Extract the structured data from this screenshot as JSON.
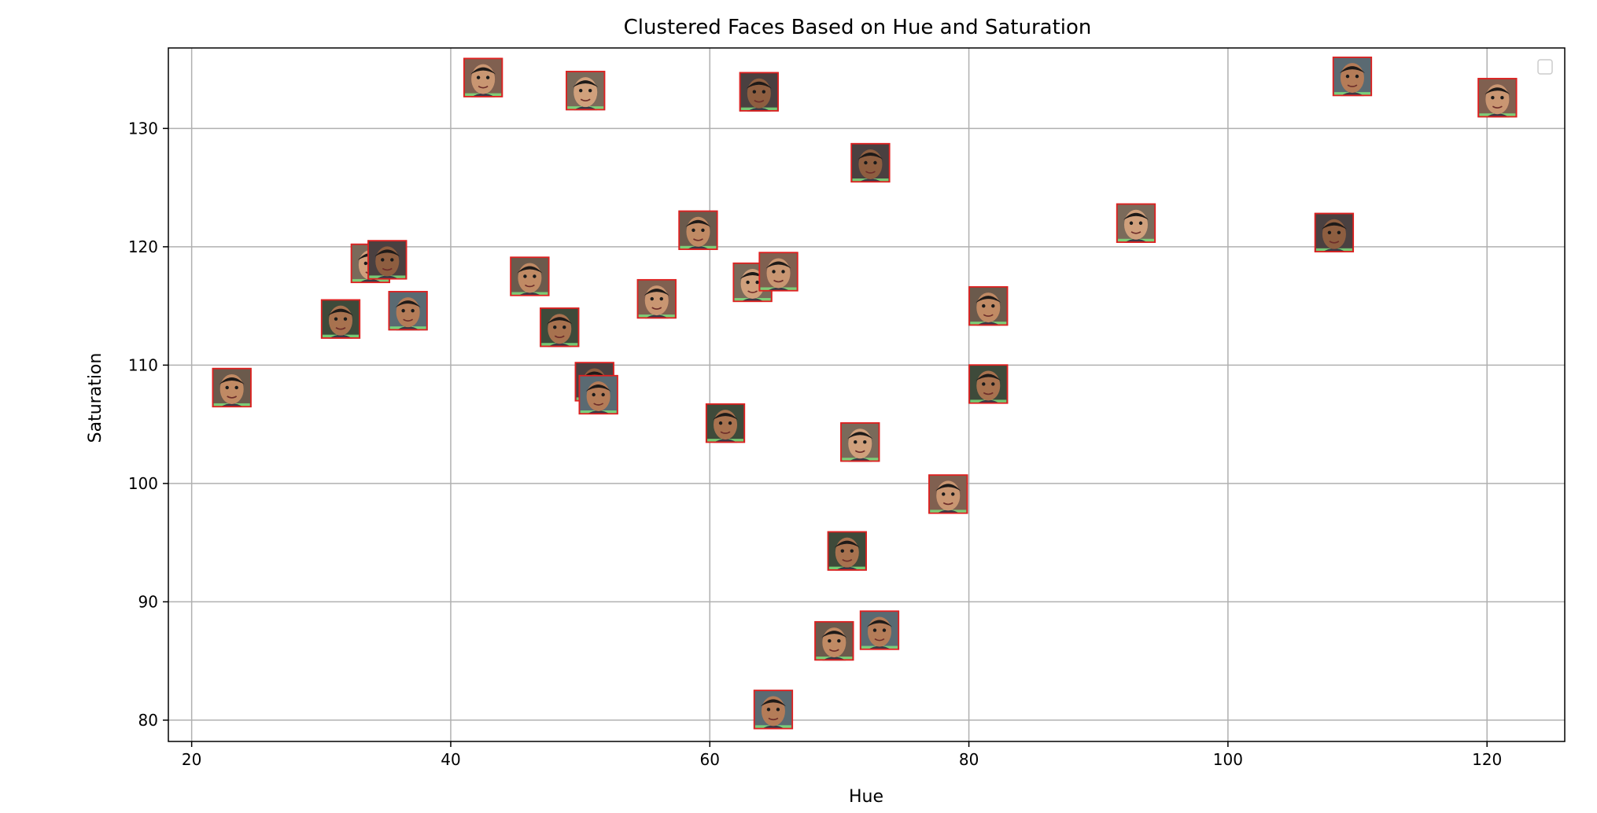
{
  "chart_data": {
    "type": "scatter",
    "title": "Clustered Faces Based on Hue and Saturation",
    "xlabel": "Hue",
    "ylabel": "Saturation",
    "xlim": [
      18.2,
      126
    ],
    "ylim": [
      78.2,
      136.8
    ],
    "xticks": [
      20,
      40,
      60,
      80,
      100,
      120
    ],
    "yticks": [
      80,
      90,
      100,
      110,
      120,
      130
    ],
    "grid": true,
    "legend": "top-right",
    "marker": "face-thumbnail",
    "colors": {
      "marker_border": "#e02020",
      "marker_accent": "#7ee07e",
      "grid": "#b0b0b0",
      "axes": "#000000"
    },
    "points": [
      {
        "x": 23.1,
        "y": 108.1
      },
      {
        "x": 31.5,
        "y": 113.9
      },
      {
        "x": 33.8,
        "y": 118.6
      },
      {
        "x": 35.1,
        "y": 118.9
      },
      {
        "x": 36.7,
        "y": 114.6
      },
      {
        "x": 42.5,
        "y": 134.3
      },
      {
        "x": 46.1,
        "y": 117.5
      },
      {
        "x": 48.4,
        "y": 113.2
      },
      {
        "x": 50.4,
        "y": 133.2
      },
      {
        "x": 51.1,
        "y": 108.6
      },
      {
        "x": 51.4,
        "y": 107.5
      },
      {
        "x": 55.9,
        "y": 115.6
      },
      {
        "x": 59.1,
        "y": 121.4
      },
      {
        "x": 61.2,
        "y": 105.1
      },
      {
        "x": 63.3,
        "y": 117.0
      },
      {
        "x": 63.8,
        "y": 133.1
      },
      {
        "x": 64.9,
        "y": 80.9
      },
      {
        "x": 65.3,
        "y": 117.9
      },
      {
        "x": 69.6,
        "y": 86.7
      },
      {
        "x": 70.6,
        "y": 94.3
      },
      {
        "x": 71.6,
        "y": 103.5
      },
      {
        "x": 72.4,
        "y": 127.1
      },
      {
        "x": 73.1,
        "y": 87.6
      },
      {
        "x": 78.4,
        "y": 99.1
      },
      {
        "x": 81.5,
        "y": 115.0
      },
      {
        "x": 81.5,
        "y": 108.4
      },
      {
        "x": 92.9,
        "y": 122.0
      },
      {
        "x": 108.2,
        "y": 121.2
      },
      {
        "x": 109.6,
        "y": 134.4
      },
      {
        "x": 120.8,
        "y": 132.6
      }
    ]
  }
}
